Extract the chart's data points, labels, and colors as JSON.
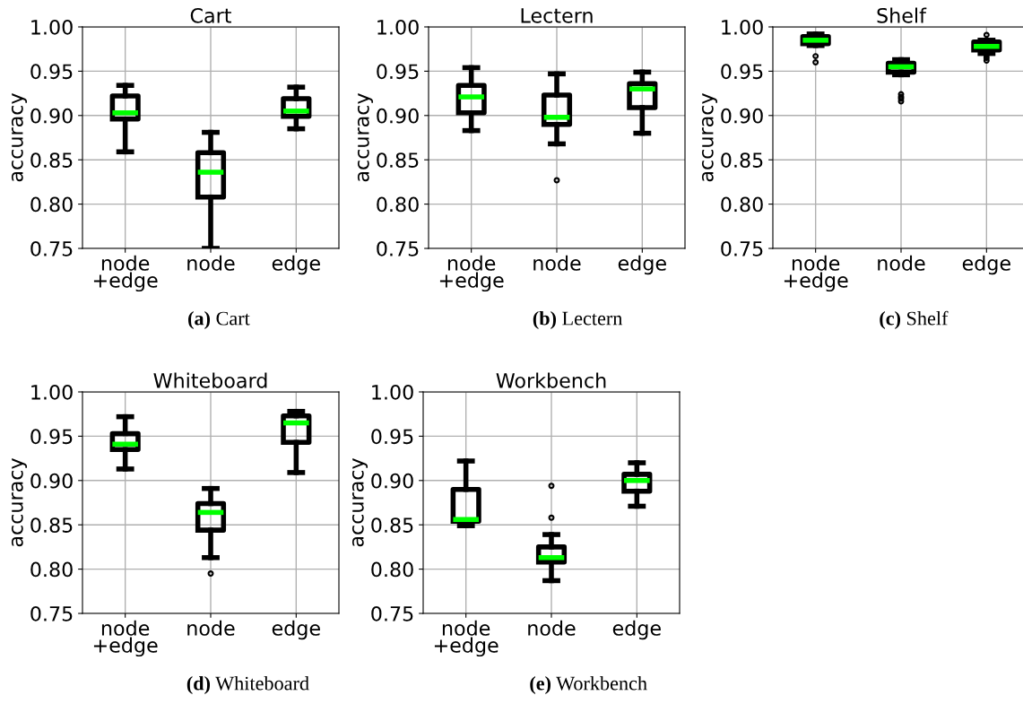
{
  "chart_data": [
    {
      "type": "box",
      "title": "Cart",
      "ylabel": "accuracy",
      "categories": [
        "node\n+edge",
        "node",
        "edge"
      ],
      "ylim": [
        0.75,
        1.0
      ],
      "yticks": [
        {
          "value": 0.75,
          "label": "0.75"
        },
        {
          "value": 0.8,
          "label": "0.80"
        },
        {
          "value": 0.85,
          "label": "0.85"
        },
        {
          "value": 0.9,
          "label": "0.90"
        },
        {
          "value": 0.95,
          "label": "0.95"
        },
        {
          "value": 1.0,
          "label": "1.00"
        }
      ],
      "grid": true,
      "annotations": [
        "(a) Cart"
      ],
      "series": [
        {
          "color": "#000000",
          "boxes": [
            {
              "low": 0.859,
              "q1": 0.896,
              "median": 0.903,
              "q3": 0.922,
              "high": 0.934
            },
            {
              "low": 0.75,
              "q1": 0.808,
              "median": 0.836,
              "q3": 0.858,
              "high": 0.881
            },
            {
              "low": 0.885,
              "q1": 0.899,
              "median": 0.905,
              "q3": 0.919,
              "high": 0.932
            }
          ]
        }
      ]
    },
    {
      "type": "box",
      "title": "Lectern",
      "ylabel": "accuracy",
      "categories": [
        "node\n+edge",
        "node",
        "edge"
      ],
      "ylim": [
        0.75,
        1.0
      ],
      "yticks": [
        {
          "value": 0.75,
          "label": "0.75"
        },
        {
          "value": 0.8,
          "label": "0.80"
        },
        {
          "value": 0.85,
          "label": "0.85"
        },
        {
          "value": 0.9,
          "label": "0.90"
        },
        {
          "value": 0.95,
          "label": "0.95"
        },
        {
          "value": 1.0,
          "label": "1.00"
        }
      ],
      "grid": true,
      "annotations": [
        "(b) Lectern"
      ],
      "series": [
        {
          "color": "#000000",
          "boxes": [
            {
              "low": 0.883,
              "q1": 0.903,
              "median": 0.921,
              "q3": 0.934,
              "high": 0.954
            },
            {
              "low": 0.868,
              "q1": 0.89,
              "median": 0.898,
              "q3": 0.923,
              "high": 0.947,
              "outliers": [
                0.827
              ]
            },
            {
              "low": 0.88,
              "q1": 0.909,
              "median": 0.93,
              "q3": 0.936,
              "high": 0.949
            }
          ]
        }
      ]
    },
    {
      "type": "box",
      "title": "Shelf",
      "ylabel": "accuracy",
      "categories": [
        "node\n+edge",
        "node",
        "edge"
      ],
      "ylim": [
        0.75,
        1.0
      ],
      "yticks": [
        {
          "value": 0.75,
          "label": "0.75"
        },
        {
          "value": 0.8,
          "label": "0.80"
        },
        {
          "value": 0.85,
          "label": "0.85"
        },
        {
          "value": 0.9,
          "label": "0.90"
        },
        {
          "value": 0.95,
          "label": "0.95"
        },
        {
          "value": 1.0,
          "label": "1.00"
        }
      ],
      "grid": true,
      "annotations": [
        "(c) Shelf"
      ],
      "series": [
        {
          "color": "#000000",
          "boxes": [
            {
              "low": 0.979,
              "q1": 0.981,
              "median": 0.985,
              "q3": 0.989,
              "high": 0.992,
              "outliers": [
                0.967,
                0.96
              ]
            },
            {
              "low": 0.946,
              "q1": 0.949,
              "median": 0.955,
              "q3": 0.959,
              "high": 0.963,
              "outliers": [
                0.924,
                0.921,
                0.919,
                0.916
              ]
            },
            {
              "low": 0.97,
              "q1": 0.974,
              "median": 0.978,
              "q3": 0.983,
              "high": 0.985,
              "outliers": [
                0.991,
                0.968,
                0.965,
                0.962
              ]
            }
          ]
        }
      ]
    },
    {
      "type": "box",
      "title": "Whiteboard",
      "ylabel": "accuracy",
      "categories": [
        "node\n+edge",
        "node",
        "edge"
      ],
      "ylim": [
        0.75,
        1.0
      ],
      "yticks": [
        {
          "value": 0.75,
          "label": "0.75"
        },
        {
          "value": 0.8,
          "label": "0.80"
        },
        {
          "value": 0.85,
          "label": "0.85"
        },
        {
          "value": 0.9,
          "label": "0.90"
        },
        {
          "value": 0.95,
          "label": "0.95"
        },
        {
          "value": 1.0,
          "label": "1.00"
        }
      ],
      "grid": true,
      "annotations": [
        "(d) Whiteboard"
      ],
      "series": [
        {
          "color": "#000000",
          "boxes": [
            {
              "low": 0.913,
              "q1": 0.935,
              "median": 0.941,
              "q3": 0.953,
              "high": 0.972
            },
            {
              "low": 0.813,
              "q1": 0.844,
              "median": 0.864,
              "q3": 0.874,
              "high": 0.891,
              "outliers": [
                0.795
              ]
            },
            {
              "low": 0.909,
              "q1": 0.943,
              "median": 0.965,
              "q3": 0.973,
              "high": 0.978
            }
          ]
        }
      ]
    },
    {
      "type": "box",
      "title": "Workbench",
      "ylabel": "accuracy",
      "categories": [
        "node\n+edge",
        "node",
        "edge"
      ],
      "ylim": [
        0.75,
        1.0
      ],
      "yticks": [
        {
          "value": 0.75,
          "label": "0.75"
        },
        {
          "value": 0.8,
          "label": "0.80"
        },
        {
          "value": 0.85,
          "label": "0.85"
        },
        {
          "value": 0.9,
          "label": "0.90"
        },
        {
          "value": 0.95,
          "label": "0.95"
        },
        {
          "value": 1.0,
          "label": "1.00"
        }
      ],
      "grid": true,
      "annotations": [
        "(e) Workbench"
      ],
      "series": [
        {
          "color": "#000000",
          "boxes": [
            {
              "low": 0.849,
              "q1": 0.854,
              "median": 0.856,
              "q3": 0.89,
              "high": 0.922
            },
            {
              "low": 0.787,
              "q1": 0.808,
              "median": 0.813,
              "q3": 0.825,
              "high": 0.839,
              "outliers": [
                0.894,
                0.858
              ]
            },
            {
              "low": 0.871,
              "q1": 0.888,
              "median": 0.9,
              "q3": 0.907,
              "high": 0.92
            }
          ]
        }
      ]
    }
  ]
}
